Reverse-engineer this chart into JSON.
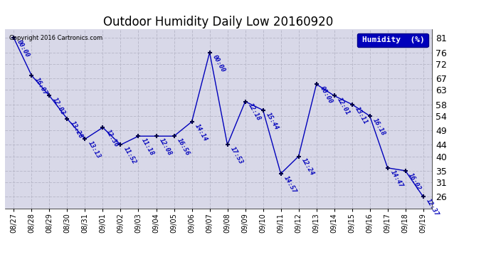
{
  "title": "Outdoor Humidity Daily Low 20160920",
  "copyright": "Copyright 2016 Cartronics.com",
  "legend_label": "Humidity  (%)",
  "dates": [
    "08/27",
    "08/28",
    "08/29",
    "08/30",
    "08/31",
    "09/01",
    "09/02",
    "09/03",
    "09/04",
    "09/05",
    "09/06",
    "09/07",
    "09/08",
    "09/09",
    "09/10",
    "09/11",
    "09/12",
    "09/13",
    "09/14",
    "09/15",
    "09/16",
    "09/17",
    "09/18",
    "09/19"
  ],
  "values": [
    81,
    68,
    61,
    53,
    46,
    50,
    44,
    47,
    47,
    47,
    52,
    76,
    44,
    59,
    56,
    34,
    40,
    65,
    61,
    58,
    54,
    36,
    35,
    26
  ],
  "times": [
    "00:00",
    "16:07",
    "12:03",
    "13:28",
    "13:13",
    "12:36",
    "11:52",
    "11:18",
    "12:08",
    "16:56",
    "14:14",
    "00:00",
    "17:53",
    "12:18",
    "15:44",
    "14:57",
    "12:24",
    "00:00",
    "12:01",
    "13:11",
    "16:18",
    "14:47",
    "16:02",
    "12:37"
  ],
  "line_color": "#0000BB",
  "marker_color": "#000044",
  "bg_color": "#FFFFFF",
  "plot_bg_color": "#D8D8E8",
  "grid_color": "#BBBBCC",
  "title_fontsize": 12,
  "yticks": [
    26,
    31,
    35,
    40,
    44,
    49,
    54,
    58,
    63,
    67,
    72,
    76,
    81
  ],
  "ylim": [
    22,
    84
  ],
  "xlim": [
    -0.5,
    23.5
  ],
  "annotation_fontsize": 6.5,
  "annotation_color": "#0000BB"
}
